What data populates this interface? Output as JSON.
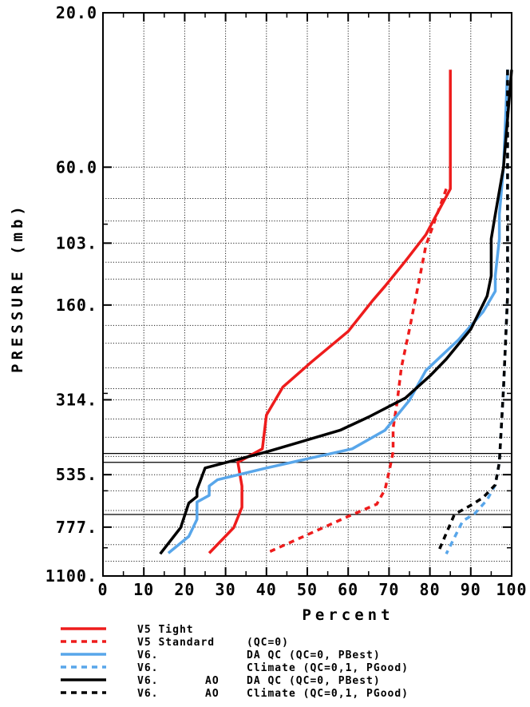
{
  "chart_data": {
    "type": "line",
    "xlabel": "Percent",
    "ylabel": "PRESSURE (mb)",
    "xlim": [
      0,
      100
    ],
    "ylim": [
      1100,
      20
    ],
    "y_scale": "log",
    "x_ticks": [
      0,
      10,
      20,
      30,
      40,
      50,
      60,
      70,
      80,
      90,
      100
    ],
    "y_tick_labels": [
      {
        "value": 20,
        "label": "20.0"
      },
      {
        "value": 60,
        "label": "60.0"
      },
      {
        "value": 103,
        "label": "103."
      },
      {
        "value": 160,
        "label": "160."
      },
      {
        "value": 314,
        "label": "314."
      },
      {
        "value": 535,
        "label": "535."
      },
      {
        "value": 777,
        "label": "777."
      },
      {
        "value": 1100,
        "label": "1100."
      }
    ],
    "y_gridlines": [
      60,
      75,
      88,
      103,
      118,
      133,
      160,
      185,
      210,
      250,
      290,
      314,
      360,
      410,
      470,
      535,
      600,
      690,
      777,
      880,
      990
    ],
    "x_gridlines": [
      10,
      20,
      30,
      40,
      50,
      60,
      70,
      80,
      90
    ],
    "grid": true,
    "hlines": [
      460,
      490,
      710
    ],
    "series": [
      {
        "name": "V5 Tight",
        "color": "#ee1c1c",
        "dash": "solid",
        "points": [
          [
            85,
            30
          ],
          [
            85,
            70
          ],
          [
            79,
            97
          ],
          [
            74,
            117
          ],
          [
            69,
            140
          ],
          [
            66,
            155
          ],
          [
            60,
            193
          ],
          [
            51,
            240
          ],
          [
            44,
            287
          ],
          [
            40,
            350
          ],
          [
            39,
            445
          ],
          [
            33,
            490
          ],
          [
            34,
            580
          ],
          [
            34,
            675
          ],
          [
            32,
            780
          ],
          [
            26,
            935
          ]
        ]
      },
      {
        "name": "V5 Standard",
        "qc": "(QC=0)",
        "color": "#ee1c1c",
        "dash": "dashed",
        "points": [
          [
            84,
            70
          ],
          [
            79,
            105
          ],
          [
            77,
            142
          ],
          [
            75,
            190
          ],
          [
            73,
            250
          ],
          [
            72,
            318
          ],
          [
            71,
            385
          ],
          [
            71,
            455
          ],
          [
            70,
            525
          ],
          [
            69,
            595
          ],
          [
            67,
            660
          ],
          [
            60,
            720
          ],
          [
            40,
            935
          ]
        ]
      },
      {
        "name": "V6.",
        "qc": "DA QC (QC=0, PBest)",
        "color": "#58a6ea",
        "dash": "solid",
        "points": [
          [
            99,
            30
          ],
          [
            98,
            60
          ],
          [
            97,
            84
          ],
          [
            97,
            100
          ],
          [
            96,
            130
          ],
          [
            96,
            145
          ],
          [
            93,
            168
          ],
          [
            87,
            205
          ],
          [
            79,
            255
          ],
          [
            75,
            315
          ],
          [
            69,
            390
          ],
          [
            61,
            445
          ],
          [
            40,
            510
          ],
          [
            28,
            555
          ],
          [
            26,
            580
          ],
          [
            26,
            620
          ],
          [
            23,
            650
          ],
          [
            23,
            735
          ],
          [
            21,
            830
          ],
          [
            16,
            935
          ]
        ]
      },
      {
        "name": "V6.",
        "qc": "Climate (QC=0,1, PGood)",
        "color": "#58a6ea",
        "dash": "dashed",
        "points": [
          [
            99,
            30
          ],
          [
            99,
            150
          ],
          [
            98,
            290
          ],
          [
            97,
            490
          ],
          [
            96,
            575
          ],
          [
            94,
            640
          ],
          [
            91,
            705
          ],
          [
            88,
            745
          ],
          [
            84,
            940
          ]
        ]
      },
      {
        "name": "V6.",
        "ao": "AO",
        "qc": "DA QC (QC=0, PBest)",
        "color": "#000000",
        "dash": "solid",
        "points": [
          [
            100,
            30
          ],
          [
            98,
            60
          ],
          [
            96,
            84
          ],
          [
            95,
            100
          ],
          [
            95,
            130
          ],
          [
            94,
            150
          ],
          [
            90,
            190
          ],
          [
            84,
            235
          ],
          [
            80,
            265
          ],
          [
            74,
            310
          ],
          [
            65,
            355
          ],
          [
            58,
            390
          ],
          [
            40,
            455
          ],
          [
            25,
            510
          ],
          [
            23,
            595
          ],
          [
            23,
            625
          ],
          [
            21,
            655
          ],
          [
            20,
            715
          ],
          [
            19,
            780
          ],
          [
            14,
            940
          ]
        ]
      },
      {
        "name": "V6.",
        "ao": "AO",
        "qc": "Climate (QC=0,1, PGood)",
        "color": "#000000",
        "dash": "dashed",
        "points": [
          [
            99,
            30
          ],
          [
            99,
            150
          ],
          [
            98,
            290
          ],
          [
            97,
            490
          ],
          [
            96,
            575
          ],
          [
            93,
            630
          ],
          [
            90,
            665
          ],
          [
            86,
            710
          ],
          [
            82,
            930
          ]
        ]
      }
    ]
  }
}
